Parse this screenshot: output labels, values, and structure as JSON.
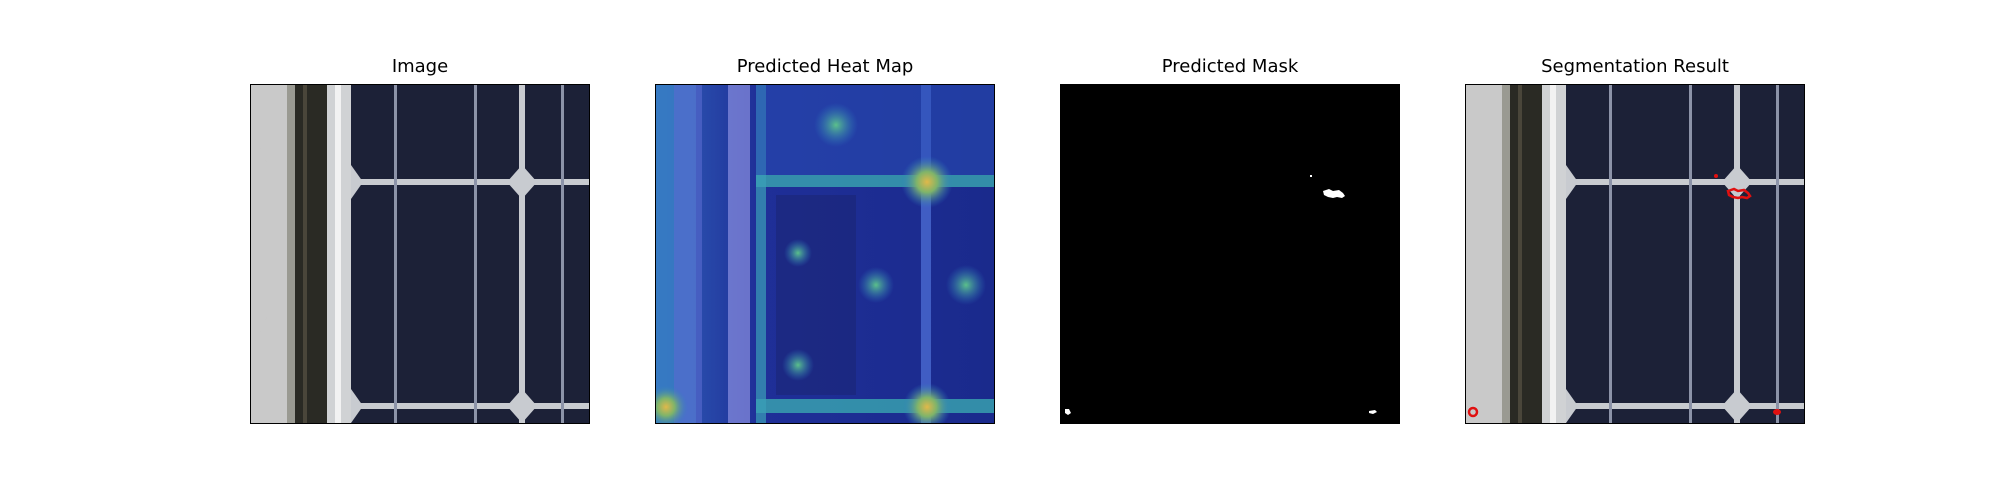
{
  "panels": [
    {
      "title": "Image"
    },
    {
      "title": "Predicted Heat Map"
    },
    {
      "title": "Predicted Mask"
    },
    {
      "title": "Segmentation Result"
    }
  ],
  "colors": {
    "cell_dark": "#1c2137",
    "busbar": "#c8cbd0",
    "frame_left": "#c9c9c9",
    "frame_gap": "#2a2a24",
    "heat_low": "#1a2a8c",
    "heat_mid": "#2e7fc2",
    "heat_high": "#d8b04a",
    "mask_bg": "#000000",
    "mask_fg": "#ffffff",
    "defect": "#e01010"
  }
}
